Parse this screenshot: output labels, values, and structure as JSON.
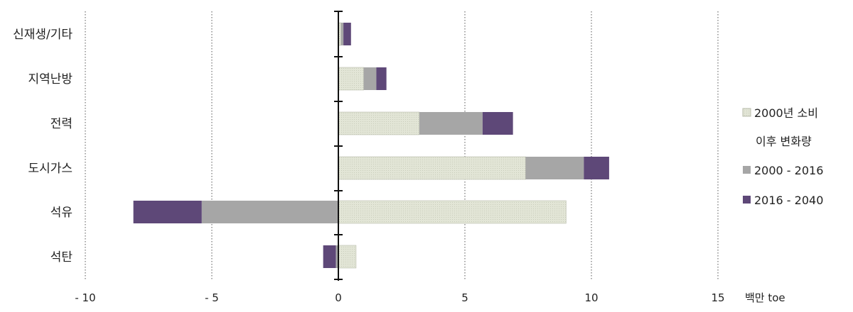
{
  "chart_data": {
    "type": "bar",
    "orientation": "horizontal",
    "stacked": true,
    "categories": [
      "신재생/기타",
      "지역난방",
      "전력",
      "도시가스",
      "석유",
      "석탄"
    ],
    "series": [
      {
        "name": "2000년 소비",
        "values": [
          0.1,
          1.0,
          3.2,
          7.4,
          9.0,
          0.7
        ],
        "color": "#dcdfd0"
      },
      {
        "name": "2000 - 2016",
        "values": [
          0.1,
          0.5,
          2.5,
          2.3,
          -5.4,
          -0.1
        ],
        "color": "#a6a6a6"
      },
      {
        "name": "2016 - 2040",
        "values": [
          0.3,
          0.4,
          1.2,
          1.0,
          -2.7,
          -0.5
        ],
        "color": "#5e4878"
      }
    ],
    "xlim": [
      -10,
      15
    ],
    "xticks": [
      -10,
      -5,
      0,
      5,
      10,
      15
    ],
    "xtick_labels": [
      "- 10",
      "- 5",
      "0",
      "5",
      "10",
      "15"
    ],
    "xunit": "백만 toe",
    "grid": "vertical dotted",
    "legend": {
      "placement": "right",
      "entries": [
        {
          "label": "2000년 소비",
          "sublabel": "이후 변화량",
          "color": "#dcdfd0"
        },
        {
          "label": "2000 - 2016",
          "color": "#a6a6a6"
        },
        {
          "label": "2016 - 2040",
          "color": "#5e4878"
        }
      ]
    }
  }
}
